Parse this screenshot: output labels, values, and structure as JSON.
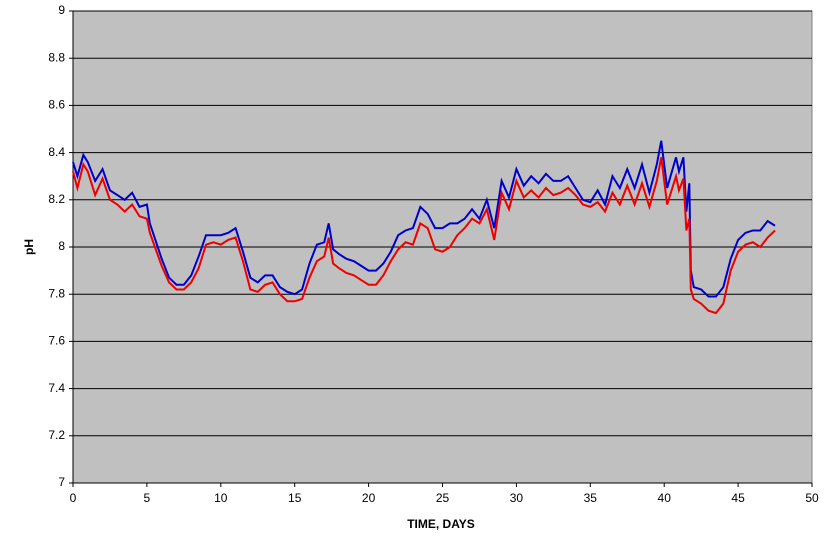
{
  "chart_data": {
    "type": "line",
    "x_label": "TIME, DAYS",
    "y_label": "pH",
    "x": [
      0,
      0.3,
      0.7,
      1.0,
      1.5,
      2.0,
      2.5,
      3.0,
      3.5,
      4.0,
      4.5,
      5.0,
      5.2,
      6.0,
      6.5,
      7.0,
      7.5,
      8.0,
      8.5,
      9.0,
      9.5,
      10.0,
      10.5,
      11.0,
      11.5,
      12.0,
      12.5,
      13.0,
      13.5,
      14.0,
      14.5,
      15.0,
      15.5,
      16.0,
      16.5,
      17.0,
      17.3,
      17.6,
      18.0,
      18.5,
      19.0,
      19.5,
      20.0,
      20.5,
      21.0,
      21.5,
      22.0,
      22.5,
      23.0,
      23.5,
      24.0,
      24.5,
      25.0,
      25.5,
      26.0,
      26.5,
      27.0,
      27.5,
      28.0,
      28.5,
      29.0,
      29.5,
      30.0,
      30.5,
      31.0,
      31.5,
      32.0,
      32.5,
      33.0,
      33.5,
      34.0,
      34.5,
      35.0,
      35.5,
      36.0,
      36.5,
      37.0,
      37.5,
      38.0,
      38.5,
      39.0,
      39.5,
      39.8,
      40.2,
      40.8,
      41.0,
      41.3,
      41.5,
      41.7,
      41.8,
      42.0,
      42.5,
      43.0,
      43.5,
      44.0,
      44.5,
      45.0,
      45.5,
      46.0,
      46.5,
      47.0,
      47.5
    ],
    "series": [
      {
        "color": "#0000cc",
        "values": [
          8.36,
          8.3,
          8.39,
          8.36,
          8.28,
          8.33,
          8.24,
          8.22,
          8.2,
          8.23,
          8.17,
          8.18,
          8.1,
          7.95,
          7.87,
          7.84,
          7.84,
          7.88,
          7.96,
          8.05,
          8.05,
          8.05,
          8.06,
          8.08,
          7.98,
          7.87,
          7.85,
          7.88,
          7.88,
          7.83,
          7.81,
          7.8,
          7.82,
          7.93,
          8.01,
          8.02,
          8.1,
          7.99,
          7.97,
          7.95,
          7.94,
          7.92,
          7.9,
          7.9,
          7.93,
          7.98,
          8.05,
          8.07,
          8.08,
          8.17,
          8.14,
          8.08,
          8.08,
          8.1,
          8.1,
          8.12,
          8.16,
          8.12,
          8.2,
          8.08,
          8.28,
          8.21,
          8.33,
          8.26,
          8.3,
          8.27,
          8.31,
          8.28,
          8.28,
          8.3,
          8.25,
          8.2,
          8.19,
          8.24,
          8.18,
          8.3,
          8.25,
          8.33,
          8.25,
          8.35,
          8.23,
          8.35,
          8.45,
          8.25,
          8.38,
          8.32,
          8.38,
          8.15,
          8.27,
          7.9,
          7.83,
          7.82,
          7.79,
          7.79,
          7.83,
          7.95,
          8.03,
          8.06,
          8.07,
          8.07,
          8.11,
          8.09
        ]
      },
      {
        "color": "#ee0000",
        "values": [
          8.32,
          8.25,
          8.35,
          8.32,
          8.22,
          8.29,
          8.2,
          8.18,
          8.15,
          8.18,
          8.13,
          8.12,
          8.06,
          7.92,
          7.85,
          7.82,
          7.82,
          7.85,
          7.91,
          8.01,
          8.02,
          8.01,
          8.03,
          8.04,
          7.94,
          7.82,
          7.81,
          7.84,
          7.85,
          7.8,
          7.77,
          7.77,
          7.78,
          7.87,
          7.94,
          7.96,
          8.04,
          7.93,
          7.91,
          7.89,
          7.88,
          7.86,
          7.84,
          7.84,
          7.88,
          7.94,
          7.99,
          8.02,
          8.01,
          8.1,
          8.08,
          7.99,
          7.98,
          8.0,
          8.05,
          8.08,
          8.12,
          8.1,
          8.16,
          8.03,
          8.23,
          8.16,
          8.28,
          8.21,
          8.24,
          8.21,
          8.25,
          8.22,
          8.23,
          8.25,
          8.22,
          8.18,
          8.17,
          8.19,
          8.15,
          8.23,
          8.18,
          8.26,
          8.18,
          8.27,
          8.17,
          8.28,
          8.38,
          8.18,
          8.3,
          8.24,
          8.29,
          8.07,
          8.12,
          7.82,
          7.78,
          7.76,
          7.73,
          7.72,
          7.76,
          7.9,
          7.98,
          8.01,
          8.02,
          8.0,
          8.04,
          8.07
        ]
      }
    ],
    "xlim": [
      0,
      50
    ],
    "xticks": [
      0,
      5,
      10,
      15,
      20,
      25,
      30,
      35,
      40,
      45,
      50
    ],
    "ylim": [
      7,
      9
    ],
    "yticks": [
      7,
      7.2,
      7.4,
      7.6,
      7.8,
      8,
      8.2,
      8.4,
      8.6,
      8.8,
      9
    ],
    "grid": true
  }
}
